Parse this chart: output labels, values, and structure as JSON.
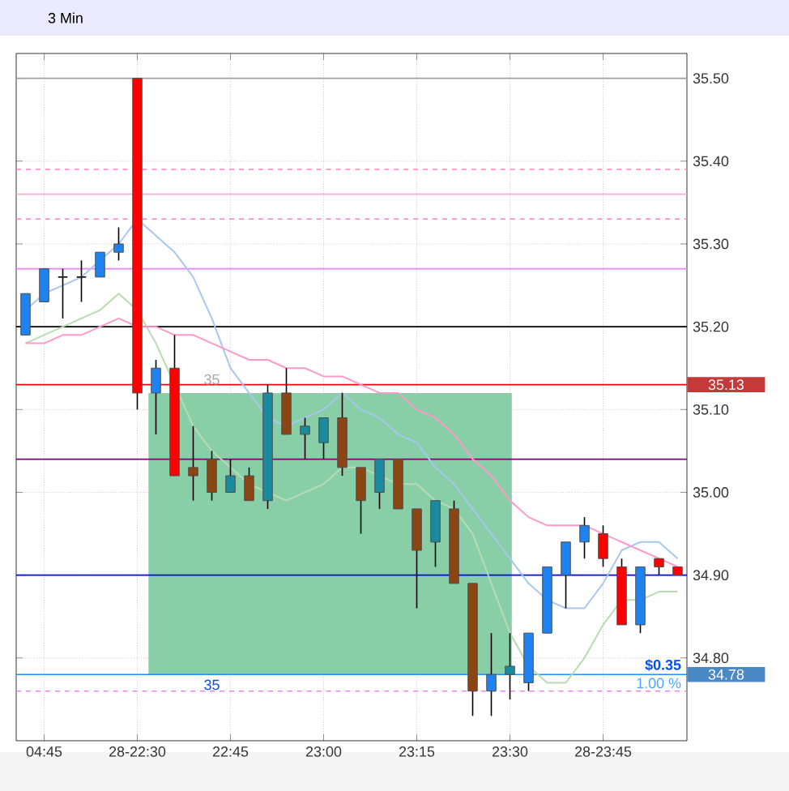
{
  "chart_data": {
    "type": "candlestick",
    "title": "3 Min",
    "categories": [
      null,
      "04:45",
      null,
      null,
      null,
      null,
      "28-22:30",
      null,
      null,
      null,
      null,
      "22:45",
      null,
      null,
      null,
      null,
      "23:00",
      null,
      null,
      null,
      null,
      "23:15",
      null,
      null,
      null,
      null,
      "23:30",
      null,
      null,
      null,
      null,
      "28-23:45",
      null,
      null,
      null,
      null
    ],
    "ohlc": [
      [
        35.19,
        35.24,
        35.19,
        35.24
      ],
      [
        35.23,
        35.27,
        35.23,
        35.27
      ],
      [
        35.26,
        35.27,
        35.21,
        35.26
      ],
      [
        35.26,
        35.28,
        35.23,
        35.26
      ],
      [
        35.26,
        35.29,
        35.26,
        35.29
      ],
      [
        35.29,
        35.32,
        35.28,
        35.3
      ],
      [
        35.5,
        35.5,
        35.1,
        35.12
      ],
      [
        35.12,
        35.16,
        35.07,
        35.15
      ],
      [
        35.15,
        35.19,
        35.02,
        35.02
      ],
      [
        35.03,
        35.08,
        34.99,
        35.02
      ],
      [
        35.04,
        35.05,
        34.99,
        35.0
      ],
      [
        35.0,
        35.04,
        35.0,
        35.02
      ],
      [
        35.02,
        35.03,
        34.99,
        34.99
      ],
      [
        34.99,
        35.13,
        34.98,
        35.12
      ],
      [
        35.12,
        35.15,
        35.07,
        35.07
      ],
      [
        35.07,
        35.09,
        35.04,
        35.08
      ],
      [
        35.06,
        35.09,
        35.04,
        35.09
      ],
      [
        35.09,
        35.12,
        35.02,
        35.03
      ],
      [
        35.03,
        35.03,
        34.95,
        34.99
      ],
      [
        35.0,
        35.04,
        34.98,
        35.04
      ],
      [
        35.04,
        35.04,
        34.98,
        34.98
      ],
      [
        34.98,
        34.98,
        34.86,
        34.93
      ],
      [
        34.94,
        34.99,
        34.91,
        34.99
      ],
      [
        34.98,
        34.99,
        34.89,
        34.89
      ],
      [
        34.89,
        34.89,
        34.73,
        34.76
      ],
      [
        34.76,
        34.83,
        34.73,
        34.78
      ],
      [
        34.78,
        34.83,
        34.75,
        34.79
      ],
      [
        34.77,
        34.83,
        34.76,
        34.83
      ],
      [
        34.83,
        34.91,
        34.83,
        34.91
      ],
      [
        34.9,
        34.94,
        34.86,
        34.94
      ],
      [
        34.94,
        34.97,
        34.92,
        34.96
      ],
      [
        34.95,
        34.96,
        34.91,
        34.92
      ],
      [
        34.91,
        34.92,
        34.84,
        34.84
      ],
      [
        34.84,
        34.91,
        34.83,
        34.91
      ],
      [
        34.92,
        34.92,
        34.9,
        34.91
      ],
      [
        34.91,
        34.91,
        34.9,
        34.9
      ]
    ],
    "colors": [
      "#1e82f0",
      "#1e82f0",
      "#000000",
      "#000000",
      "#1e82f0",
      "#1e82f0",
      "#ff0000",
      "#1e82f0",
      "#ff0000",
      "#8b4513",
      "#8b4513",
      "#1a8a9e",
      "#8b4513",
      "#1a8a9e",
      "#8b4513",
      "#1a8a9e",
      "#1a8a9e",
      "#8b4513",
      "#8b4513",
      "#1a8a9e",
      "#8b4513",
      "#8b4513",
      "#1a8a9e",
      "#8b4513",
      "#8b4513",
      "#1e82f0",
      "#1a8a9e",
      "#1e82f0",
      "#1e82f0",
      "#1e82f0",
      "#1e82f0",
      "#ff0000",
      "#ff0000",
      "#1e82f0",
      "#ff0000",
      "#ff0000"
    ],
    "series": [
      {
        "type": "line",
        "color": "#a8c8ec",
        "values": [
          35.22,
          35.24,
          35.25,
          35.26,
          35.28,
          35.3,
          35.33,
          35.31,
          35.29,
          35.26,
          35.21,
          35.15,
          35.12,
          35.09,
          35.08,
          35.09,
          35.1,
          35.12,
          35.1,
          35.09,
          35.07,
          35.06,
          35.03,
          35.01,
          34.98,
          34.95,
          34.92,
          34.89,
          34.87,
          34.86,
          34.86,
          34.89,
          34.93,
          34.94,
          34.94,
          34.92
        ]
      },
      {
        "type": "line",
        "color": "#b8dcb0",
        "values": [
          35.18,
          35.19,
          35.2,
          35.21,
          35.22,
          35.24,
          35.22,
          35.18,
          null,
          35.08,
          35.05,
          35.03,
          35.01,
          35.0,
          34.99,
          35.0,
          35.01,
          35.03,
          35.03,
          35.02,
          35.01,
          35.01,
          34.99,
          34.98,
          34.95,
          34.89,
          34.83,
          34.79,
          34.77,
          34.77,
          34.8,
          34.84,
          34.87,
          34.87,
          34.88,
          34.88
        ]
      },
      {
        "type": "line",
        "color": "#ff99cc",
        "values": [
          35.18,
          35.18,
          35.19,
          35.19,
          35.2,
          35.21,
          35.2,
          35.2,
          35.19,
          35.19,
          35.18,
          35.17,
          35.16,
          35.16,
          35.15,
          35.15,
          35.14,
          35.14,
          35.13,
          35.12,
          35.12,
          35.1,
          35.09,
          35.07,
          35.04,
          35.02,
          34.99,
          34.97,
          34.96,
          34.96,
          34.96,
          34.95,
          34.94,
          34.93,
          34.92,
          34.91
        ]
      }
    ],
    "ylim": [
      34.7,
      35.53
    ],
    "yticks": [
      {
        "value": 34.8,
        "label": "34.80"
      },
      {
        "value": 34.9,
        "label": "34.90"
      },
      {
        "value": 35.0,
        "label": "35.00"
      },
      {
        "value": 35.1,
        "label": "35.10"
      },
      {
        "value": 35.2,
        "label": "35.20"
      },
      {
        "value": 35.3,
        "label": "35.30"
      },
      {
        "value": 35.4,
        "label": "35.40"
      },
      {
        "value": 35.5,
        "label": "35.50"
      }
    ],
    "grid": true,
    "ref_lines": [
      {
        "axis": "y",
        "value": 35.5,
        "color": "#a0a0a0",
        "line_style": "solid"
      },
      {
        "axis": "y",
        "value": 35.39,
        "color": "#ff80c0",
        "line_style": "dashed"
      },
      {
        "axis": "y",
        "value": 35.36,
        "color": "#ffaad4",
        "line_style": "solid"
      },
      {
        "axis": "y",
        "value": 35.33,
        "color": "#ff80c0",
        "line_style": "dashed"
      },
      {
        "axis": "y",
        "value": 35.27,
        "color": "#ee82ee",
        "line_style": "solid"
      },
      {
        "axis": "y",
        "value": 35.2,
        "color": "#000000",
        "line_style": "solid"
      },
      {
        "axis": "y",
        "value": 35.13,
        "color": "#ff0000",
        "line_style": "solid",
        "label": "35.13"
      },
      {
        "axis": "y",
        "value": 35.04,
        "color": "#800080",
        "line_style": "solid"
      },
      {
        "axis": "y",
        "value": 34.9,
        "color": "#0000ff",
        "line_style": "solid"
      },
      {
        "axis": "y",
        "value": 34.78,
        "color": "#1e90ff",
        "line_style": "solid",
        "label": "34.78"
      },
      {
        "axis": "y",
        "value": 34.76,
        "color": "#ee82ee",
        "line_style": "dashed"
      }
    ],
    "bands": [
      {
        "axis": "y",
        "from": 34.78,
        "to": 35.12,
        "color": "#88cfa8"
      }
    ],
    "annotations": [
      "35",
      "35",
      "$0.35",
      "1.00 %"
    ]
  }
}
